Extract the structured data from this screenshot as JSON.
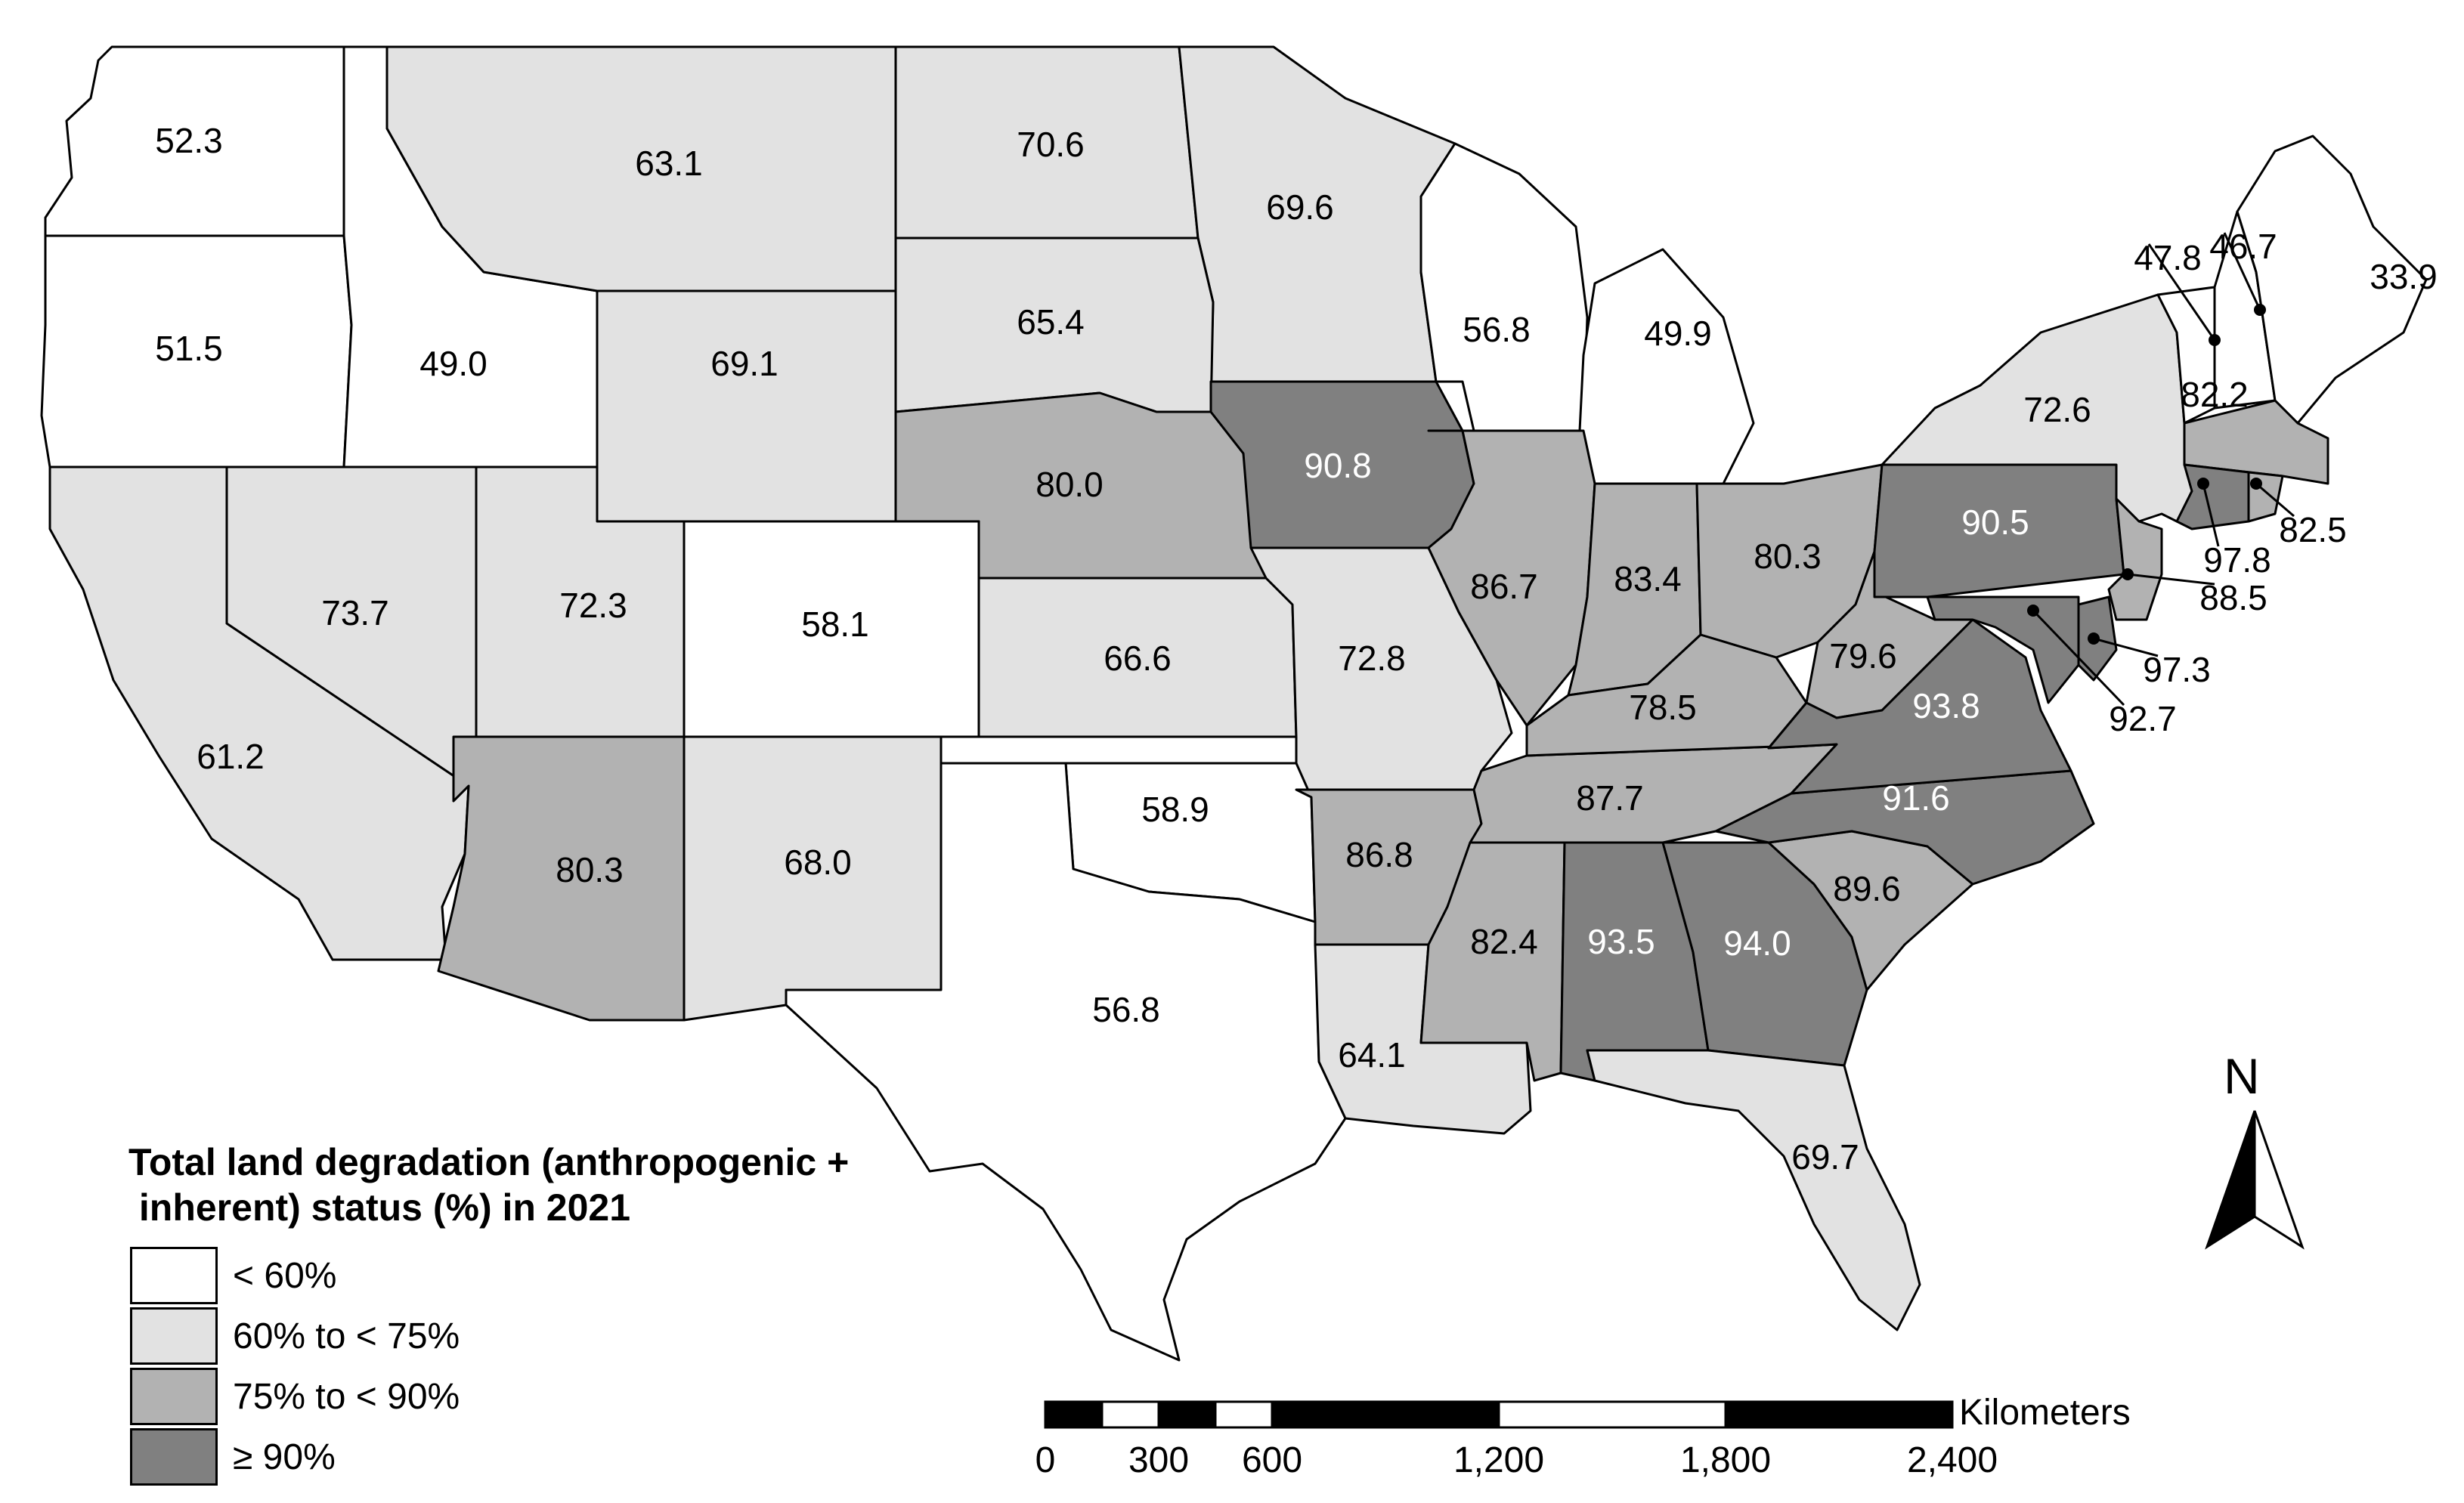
{
  "map": {
    "colors": {
      "lt60": "#ffffff",
      "60to75": "#e2e2e2",
      "75to90": "#b2b2b2",
      "gte90": "#808080"
    },
    "states": [
      {
        "id": "WA",
        "value": "52.3",
        "cls": "lt60"
      },
      {
        "id": "OR",
        "value": "51.5",
        "cls": "lt60"
      },
      {
        "id": "ID",
        "value": "49.0",
        "cls": "lt60"
      },
      {
        "id": "MT",
        "value": "63.1",
        "cls": "60to75"
      },
      {
        "id": "ND",
        "value": "70.6",
        "cls": "60to75"
      },
      {
        "id": "MN",
        "value": "69.6",
        "cls": "60to75"
      },
      {
        "id": "WY",
        "value": "69.1",
        "cls": "60to75"
      },
      {
        "id": "SD",
        "value": "65.4",
        "cls": "60to75"
      },
      {
        "id": "WI",
        "value": "56.8",
        "cls": "lt60"
      },
      {
        "id": "MI",
        "value": "49.9",
        "cls": "lt60"
      },
      {
        "id": "NE",
        "value": "80.0",
        "cls": "75to90"
      },
      {
        "id": "IA",
        "value": "90.8",
        "cls": "gte90"
      },
      {
        "id": "CA",
        "value": "61.2",
        "cls": "60to75"
      },
      {
        "id": "NV",
        "value": "73.7",
        "cls": "60to75"
      },
      {
        "id": "UT",
        "value": "72.3",
        "cls": "60to75"
      },
      {
        "id": "CO",
        "value": "58.1",
        "cls": "lt60"
      },
      {
        "id": "KS",
        "value": "66.6",
        "cls": "60to75"
      },
      {
        "id": "MO",
        "value": "72.8",
        "cls": "60to75"
      },
      {
        "id": "IL",
        "value": "86.7",
        "cls": "75to90"
      },
      {
        "id": "IN",
        "value": "83.4",
        "cls": "75to90"
      },
      {
        "id": "OH",
        "value": "80.3",
        "cls": "75to90"
      },
      {
        "id": "AZ",
        "value": "80.3",
        "cls": "75to90"
      },
      {
        "id": "NM",
        "value": "68.0",
        "cls": "60to75"
      },
      {
        "id": "OK",
        "value": "58.9",
        "cls": "lt60"
      },
      {
        "id": "TX",
        "value": "56.8",
        "cls": "lt60"
      },
      {
        "id": "AR",
        "value": "86.8",
        "cls": "75to90"
      },
      {
        "id": "LA",
        "value": "64.1",
        "cls": "60to75"
      },
      {
        "id": "MS",
        "value": "82.4",
        "cls": "75to90"
      },
      {
        "id": "AL",
        "value": "93.5",
        "cls": "gte90"
      },
      {
        "id": "GA",
        "value": "94.0",
        "cls": "gte90"
      },
      {
        "id": "FL",
        "value": "69.7",
        "cls": "60to75"
      },
      {
        "id": "SC",
        "value": "89.6",
        "cls": "75to90"
      },
      {
        "id": "NC",
        "value": "91.6",
        "cls": "gte90"
      },
      {
        "id": "TN",
        "value": "87.7",
        "cls": "75to90"
      },
      {
        "id": "KY",
        "value": "78.5",
        "cls": "75to90"
      },
      {
        "id": "WV",
        "value": "79.6",
        "cls": "75to90"
      },
      {
        "id": "VA",
        "value": "93.8",
        "cls": "gte90"
      },
      {
        "id": "PA",
        "value": "90.5",
        "cls": "gte90"
      },
      {
        "id": "NY",
        "value": "72.6",
        "cls": "60to75"
      },
      {
        "id": "MA",
        "value": "82.2",
        "cls": "75to90"
      },
      {
        "id": "VT",
        "value": "47.8",
        "cls": "lt60"
      },
      {
        "id": "NH",
        "value": "46.7",
        "cls": "lt60"
      },
      {
        "id": "ME",
        "value": "33.9",
        "cls": "lt60"
      },
      {
        "id": "CT",
        "value": "97.8",
        "cls": "gte90"
      },
      {
        "id": "RI",
        "value": "82.5",
        "cls": "75to90"
      },
      {
        "id": "NJ",
        "value": "88.5",
        "cls": "75to90"
      },
      {
        "id": "DE",
        "value": "97.3",
        "cls": "gte90"
      },
      {
        "id": "MD",
        "value": "92.7",
        "cls": "gte90"
      }
    ]
  },
  "legend": {
    "title": "Total land degradation (anthropogenic +\n inherent) status (%) in 2021",
    "items": [
      {
        "label": "< 60%",
        "cls": "lt60"
      },
      {
        "label": "60%  to < 75%",
        "cls": "60to75"
      },
      {
        "label": "75%  to < 90%",
        "cls": "75to90"
      },
      {
        "label": "≥ 90%",
        "cls": "gte90"
      }
    ]
  },
  "scale_bar": {
    "unit": "Kilometers",
    "labels": [
      "0",
      "300",
      "600",
      "1,200",
      "1,800",
      "2,400"
    ]
  },
  "north_arrow": {
    "label": "N",
    "icon": "north-arrow-icon"
  }
}
